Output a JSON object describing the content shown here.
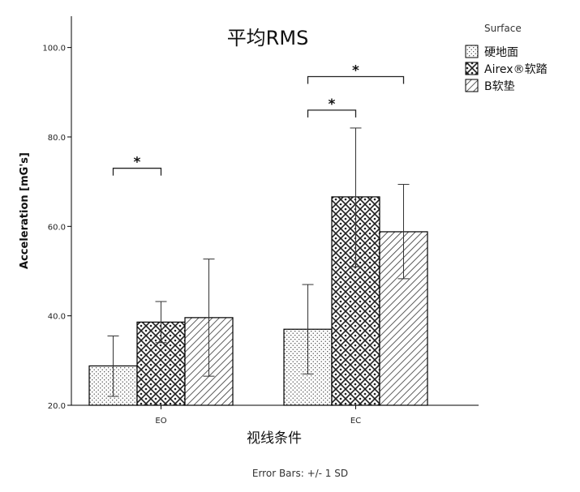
{
  "chart_data": {
    "type": "bar",
    "title": "平均RMS",
    "xlabel": "视线条件",
    "ylabel": "Acceleration [mG's]",
    "categories": [
      "EO",
      "EC"
    ],
    "ylim": [
      20,
      107
    ],
    "yticks": [
      "20.0",
      "40.0",
      "60.0",
      "80.0",
      "100.0"
    ],
    "ytick_values": [
      20,
      40,
      60,
      80,
      100
    ],
    "grid": false,
    "legend": {
      "title": "Surface",
      "position": "top-right"
    },
    "series": [
      {
        "name": "硬地面",
        "pattern": "dots",
        "values": [
          28.8,
          37.0
        ],
        "err_low": [
          22.0,
          27.0
        ],
        "err_high": [
          35.5,
          47.0
        ]
      },
      {
        "name": "Airex®软踏",
        "pattern": "cross",
        "values": [
          38.6,
          66.6
        ],
        "err_low": [
          34.0,
          51.0
        ],
        "err_high": [
          43.2,
          82.0
        ]
      },
      {
        "name": "B软垫",
        "pattern": "hatch",
        "values": [
          39.6,
          58.8
        ],
        "err_low": [
          26.5,
          48.3
        ],
        "err_high": [
          52.7,
          69.4
        ]
      }
    ],
    "annotations": [
      {
        "text": "*",
        "category": "EO",
        "from_series": 0,
        "to_series": 1,
        "y": 73.0
      },
      {
        "text": "*",
        "category": "EC",
        "from_series": 0,
        "to_series": 1,
        "y": 86.0
      },
      {
        "text": "*",
        "category": "EC",
        "from_series": 0,
        "to_series": 2,
        "y": 93.5
      }
    ],
    "footnote": "Error Bars: +/- 1 SD"
  }
}
